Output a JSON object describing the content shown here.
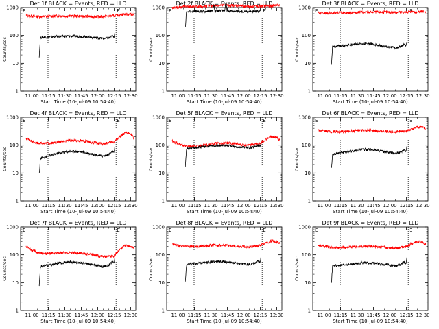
{
  "chart_data": [
    {
      "type": "line",
      "title": "Det 1f BLACK = Events, RED = LLD",
      "xlabel": "Start Time (10-Jul-09 10:54:40)",
      "ylabel": "Counts/sec",
      "yscale": "log",
      "ylim": [
        1,
        1000
      ],
      "xlim_minutes": [
        -5,
        100
      ],
      "x_ticks": [
        "11:00",
        "11:15",
        "11:30",
        "11:45",
        "12:00",
        "12:15",
        "12:30"
      ],
      "y_ticks": [
        "1",
        "10",
        "100",
        "1000"
      ],
      "vertical_markers_minutes": [
        20,
        82
      ],
      "marker_label": "E",
      "grid": false,
      "series": [
        {
          "color": "#ff0000",
          "x": [
            0,
            10,
            20,
            30,
            40,
            50,
            60,
            70,
            80,
            90,
            98
          ],
          "values": [
            520,
            470,
            480,
            500,
            495,
            485,
            475,
            470,
            500,
            580,
            560
          ]
        },
        {
          "color": "#000000",
          "x": [
            12,
            13,
            14,
            20,
            30,
            40,
            50,
            60,
            70,
            75,
            79,
            80,
            81
          ],
          "values": [
            18,
            80,
            85,
            88,
            92,
            95,
            93,
            85,
            78,
            80,
            95,
            85,
            130
          ]
        }
      ]
    },
    {
      "type": "line",
      "title": "Det 2f BLACK = Events, RED = LLD",
      "xlabel": "Start Time (10-Jul-09 10:54:40)",
      "ylabel": "Counts/sec",
      "yscale": "log",
      "ylim": [
        1,
        1000
      ],
      "xlim_minutes": [
        -5,
        100
      ],
      "x_ticks": [
        "11:00",
        "11:15",
        "11:30",
        "11:45",
        "12:00",
        "12:15",
        "12:30"
      ],
      "y_ticks": [
        "1",
        "10",
        "100",
        "1000"
      ],
      "vertical_markers_minutes": [
        20,
        82
      ],
      "marker_label": "E",
      "grid": false,
      "series": [
        {
          "color": "#ff0000",
          "x": [
            0,
            10,
            20,
            30,
            40,
            50,
            60,
            70,
            80,
            90,
            98
          ],
          "values": [
            1000,
            1050,
            1080,
            1100,
            1150,
            1200,
            1150,
            1100,
            1100,
            1150,
            1200
          ]
        },
        {
          "color": "#000000",
          "x": [
            12,
            13,
            14,
            20,
            30,
            37,
            38,
            39,
            45,
            48,
            49,
            50,
            60,
            70,
            79,
            80
          ],
          "values": [
            180,
            700,
            720,
            730,
            730,
            740,
            1300,
            740,
            760,
            780,
            1500,
            760,
            730,
            720,
            720,
            740
          ]
        }
      ]
    },
    {
      "type": "line",
      "title": "Det 3f BLACK = Events, RED = LLD",
      "xlabel": "Start Time (10-Jul-09 10:54:40)",
      "ylabel": "Counts/sec",
      "yscale": "log",
      "ylim": [
        1,
        1000
      ],
      "xlim_minutes": [
        -5,
        100
      ],
      "x_ticks": [
        "11:00",
        "11:15",
        "11:30",
        "11:45",
        "12:00",
        "12:15",
        "12:30"
      ],
      "y_ticks": [
        "1",
        "10",
        "100",
        "1000"
      ],
      "vertical_markers_minutes": [
        20,
        82
      ],
      "marker_label": "E",
      "grid": false,
      "series": [
        {
          "color": "#ff0000",
          "x": [
            0,
            10,
            20,
            30,
            40,
            50,
            60,
            70,
            80,
            90,
            98
          ],
          "values": [
            620,
            630,
            640,
            660,
            680,
            690,
            680,
            670,
            680,
            700,
            720
          ]
        },
        {
          "color": "#000000",
          "x": [
            12,
            13,
            14,
            20,
            30,
            40,
            50,
            60,
            70,
            75,
            79,
            80,
            81
          ],
          "values": [
            8,
            38,
            40,
            42,
            47,
            52,
            48,
            40,
            36,
            40,
            50,
            42,
            60
          ]
        }
      ]
    },
    {
      "type": "line",
      "title": "Det 4f BLACK = Events, RED = LLD",
      "xlabel": "Start Time (10-Jul-09 10:54:40)",
      "ylabel": "Counts/sec",
      "yscale": "log",
      "ylim": [
        1,
        1000
      ],
      "xlim_minutes": [
        -5,
        100
      ],
      "x_ticks": [
        "11:00",
        "11:15",
        "11:30",
        "11:45",
        "12:00",
        "12:15",
        "12:30"
      ],
      "y_ticks": [
        "1",
        "10",
        "100",
        "1000"
      ],
      "vertical_markers_minutes": [
        20,
        82
      ],
      "marker_label": "E",
      "grid": false,
      "series": [
        {
          "color": "#ff0000",
          "x": [
            0,
            5,
            10,
            20,
            30,
            40,
            50,
            60,
            70,
            80,
            85,
            90,
            95,
            98
          ],
          "values": [
            170,
            140,
            120,
            115,
            130,
            150,
            145,
            125,
            110,
            130,
            200,
            270,
            260,
            180
          ]
        },
        {
          "color": "#000000",
          "x": [
            12,
            13,
            14,
            20,
            30,
            40,
            50,
            60,
            70,
            75,
            79,
            80,
            81
          ],
          "values": [
            9,
            30,
            35,
            40,
            52,
            60,
            58,
            48,
            40,
            45,
            60,
            50,
            90
          ]
        }
      ]
    },
    {
      "type": "line",
      "title": "Det 5f BLACK = Events, RED = LLD",
      "xlabel": "Start Time (10-Jul-09 10:54:40)",
      "ylabel": "Counts/sec",
      "yscale": "log",
      "ylim": [
        1,
        1000
      ],
      "xlim_minutes": [
        -5,
        100
      ],
      "x_ticks": [
        "11:00",
        "11:15",
        "11:30",
        "11:45",
        "12:00",
        "12:15",
        "12:30"
      ],
      "y_ticks": [
        "1",
        "10",
        "100",
        "1000"
      ],
      "vertical_markers_minutes": [
        20,
        82
      ],
      "marker_label": "E",
      "grid": false,
      "series": [
        {
          "color": "#ff0000",
          "x": [
            0,
            5,
            10,
            20,
            30,
            40,
            50,
            60,
            70,
            80,
            85,
            90,
            95,
            98
          ],
          "values": [
            140,
            115,
            95,
            90,
            100,
            115,
            120,
            110,
            100,
            115,
            160,
            200,
            190,
            150
          ]
        },
        {
          "color": "#000000",
          "x": [
            12,
            13,
            14,
            20,
            30,
            40,
            50,
            60,
            70,
            75,
            79,
            80,
            81
          ],
          "values": [
            15,
            70,
            75,
            80,
            88,
            95,
            95,
            88,
            80,
            85,
            100,
            90,
            115
          ]
        }
      ]
    },
    {
      "type": "line",
      "title": "Det 6f BLACK = Events, RED = LLD",
      "xlabel": "Start Time (10-Jul-09 10:54:40)",
      "ylabel": "Counts/sec",
      "yscale": "log",
      "ylim": [
        1,
        1000
      ],
      "xlim_minutes": [
        -5,
        100
      ],
      "x_ticks": [
        "11:00",
        "11:15",
        "11:30",
        "11:45",
        "12:00",
        "12:15",
        "12:30"
      ],
      "y_ticks": [
        "1",
        "10",
        "100",
        "1000"
      ],
      "vertical_markers_minutes": [
        20,
        82
      ],
      "marker_label": "E",
      "grid": false,
      "series": [
        {
          "color": "#ff0000",
          "x": [
            0,
            10,
            20,
            30,
            40,
            50,
            60,
            70,
            80,
            85,
            90,
            95,
            98
          ],
          "values": [
            350,
            310,
            300,
            320,
            340,
            330,
            315,
            300,
            320,
            360,
            430,
            440,
            380
          ]
        },
        {
          "color": "#000000",
          "x": [
            12,
            13,
            14,
            20,
            30,
            40,
            50,
            60,
            70,
            75,
            79,
            80,
            81
          ],
          "values": [
            14,
            42,
            48,
            52,
            60,
            70,
            68,
            58,
            50,
            55,
            70,
            60,
            95
          ]
        }
      ]
    },
    {
      "type": "line",
      "title": "Det 7f BLACK = Events, RED = LLD",
      "xlabel": "Start Time (10-Jul-09 10:54:40)",
      "ylabel": "Counts/sec",
      "yscale": "log",
      "ylim": [
        1,
        1000
      ],
      "xlim_minutes": [
        -5,
        100
      ],
      "x_ticks": [
        "11:00",
        "11:15",
        "11:30",
        "11:45",
        "12:00",
        "12:15",
        "12:30"
      ],
      "y_ticks": [
        "1",
        "10",
        "100",
        "1000"
      ],
      "vertical_markers_minutes": [
        20,
        82
      ],
      "marker_label": "E",
      "grid": false,
      "series": [
        {
          "color": "#ff0000",
          "x": [
            0,
            5,
            10,
            20,
            30,
            40,
            50,
            60,
            70,
            80,
            85,
            90,
            95,
            98
          ],
          "values": [
            200,
            150,
            120,
            110,
            115,
            120,
            115,
            100,
            85,
            90,
            150,
            210,
            200,
            170
          ]
        },
        {
          "color": "#000000",
          "x": [
            12,
            13,
            14,
            20,
            30,
            40,
            50,
            60,
            70,
            75,
            79,
            80,
            81
          ],
          "values": [
            7,
            35,
            40,
            42,
            50,
            55,
            52,
            45,
            38,
            42,
            55,
            48,
            75
          ]
        }
      ]
    },
    {
      "type": "line",
      "title": "Det 8f BLACK = Events, RED = LLD",
      "xlabel": "Start Time (10-Jul-09 10:54:40)",
      "ylabel": "Counts/sec",
      "yscale": "log",
      "ylim": [
        1,
        1000
      ],
      "xlim_minutes": [
        -5,
        100
      ],
      "x_ticks": [
        "11:00",
        "11:15",
        "11:30",
        "11:45",
        "12:00",
        "12:15",
        "12:30"
      ],
      "y_ticks": [
        "1",
        "10",
        "100",
        "1000"
      ],
      "vertical_markers_minutes": [
        20,
        82
      ],
      "marker_label": "E",
      "grid": false,
      "series": [
        {
          "color": "#ff0000",
          "x": [
            0,
            5,
            10,
            20,
            30,
            40,
            50,
            60,
            70,
            80,
            85,
            90,
            95,
            98
          ],
          "values": [
            250,
            210,
            200,
            195,
            210,
            220,
            215,
            200,
            190,
            210,
            260,
            310,
            300,
            260
          ]
        },
        {
          "color": "#000000",
          "x": [
            12,
            13,
            14,
            20,
            30,
            40,
            50,
            60,
            70,
            75,
            79,
            80,
            81
          ],
          "values": [
            10,
            40,
            45,
            48,
            52,
            58,
            55,
            50,
            45,
            50,
            60,
            55,
            80
          ]
        }
      ]
    },
    {
      "type": "line",
      "title": "Det 9f BLACK = Events, RED = LLD",
      "xlabel": "Start Time (10-Jul-09 10:54:40)",
      "ylabel": "Counts/sec",
      "yscale": "log",
      "ylim": [
        1,
        1000
      ],
      "xlim_minutes": [
        -5,
        100
      ],
      "x_ticks": [
        "11:00",
        "11:15",
        "11:30",
        "11:45",
        "12:00",
        "12:15",
        "12:30"
      ],
      "y_ticks": [
        "1",
        "10",
        "100",
        "1000"
      ],
      "vertical_markers_minutes": [
        20,
        82
      ],
      "marker_label": "E",
      "grid": false,
      "series": [
        {
          "color": "#ff0000",
          "x": [
            0,
            5,
            10,
            20,
            30,
            40,
            50,
            60,
            70,
            80,
            85,
            90,
            95,
            98
          ],
          "values": [
            220,
            200,
            185,
            180,
            185,
            195,
            200,
            185,
            175,
            195,
            250,
            290,
            280,
            240
          ]
        },
        {
          "color": "#000000",
          "x": [
            12,
            13,
            14,
            20,
            30,
            40,
            50,
            60,
            70,
            75,
            79,
            80,
            81
          ],
          "values": [
            9,
            38,
            40,
            42,
            46,
            52,
            50,
            45,
            40,
            44,
            55,
            50,
            80
          ]
        }
      ]
    }
  ]
}
